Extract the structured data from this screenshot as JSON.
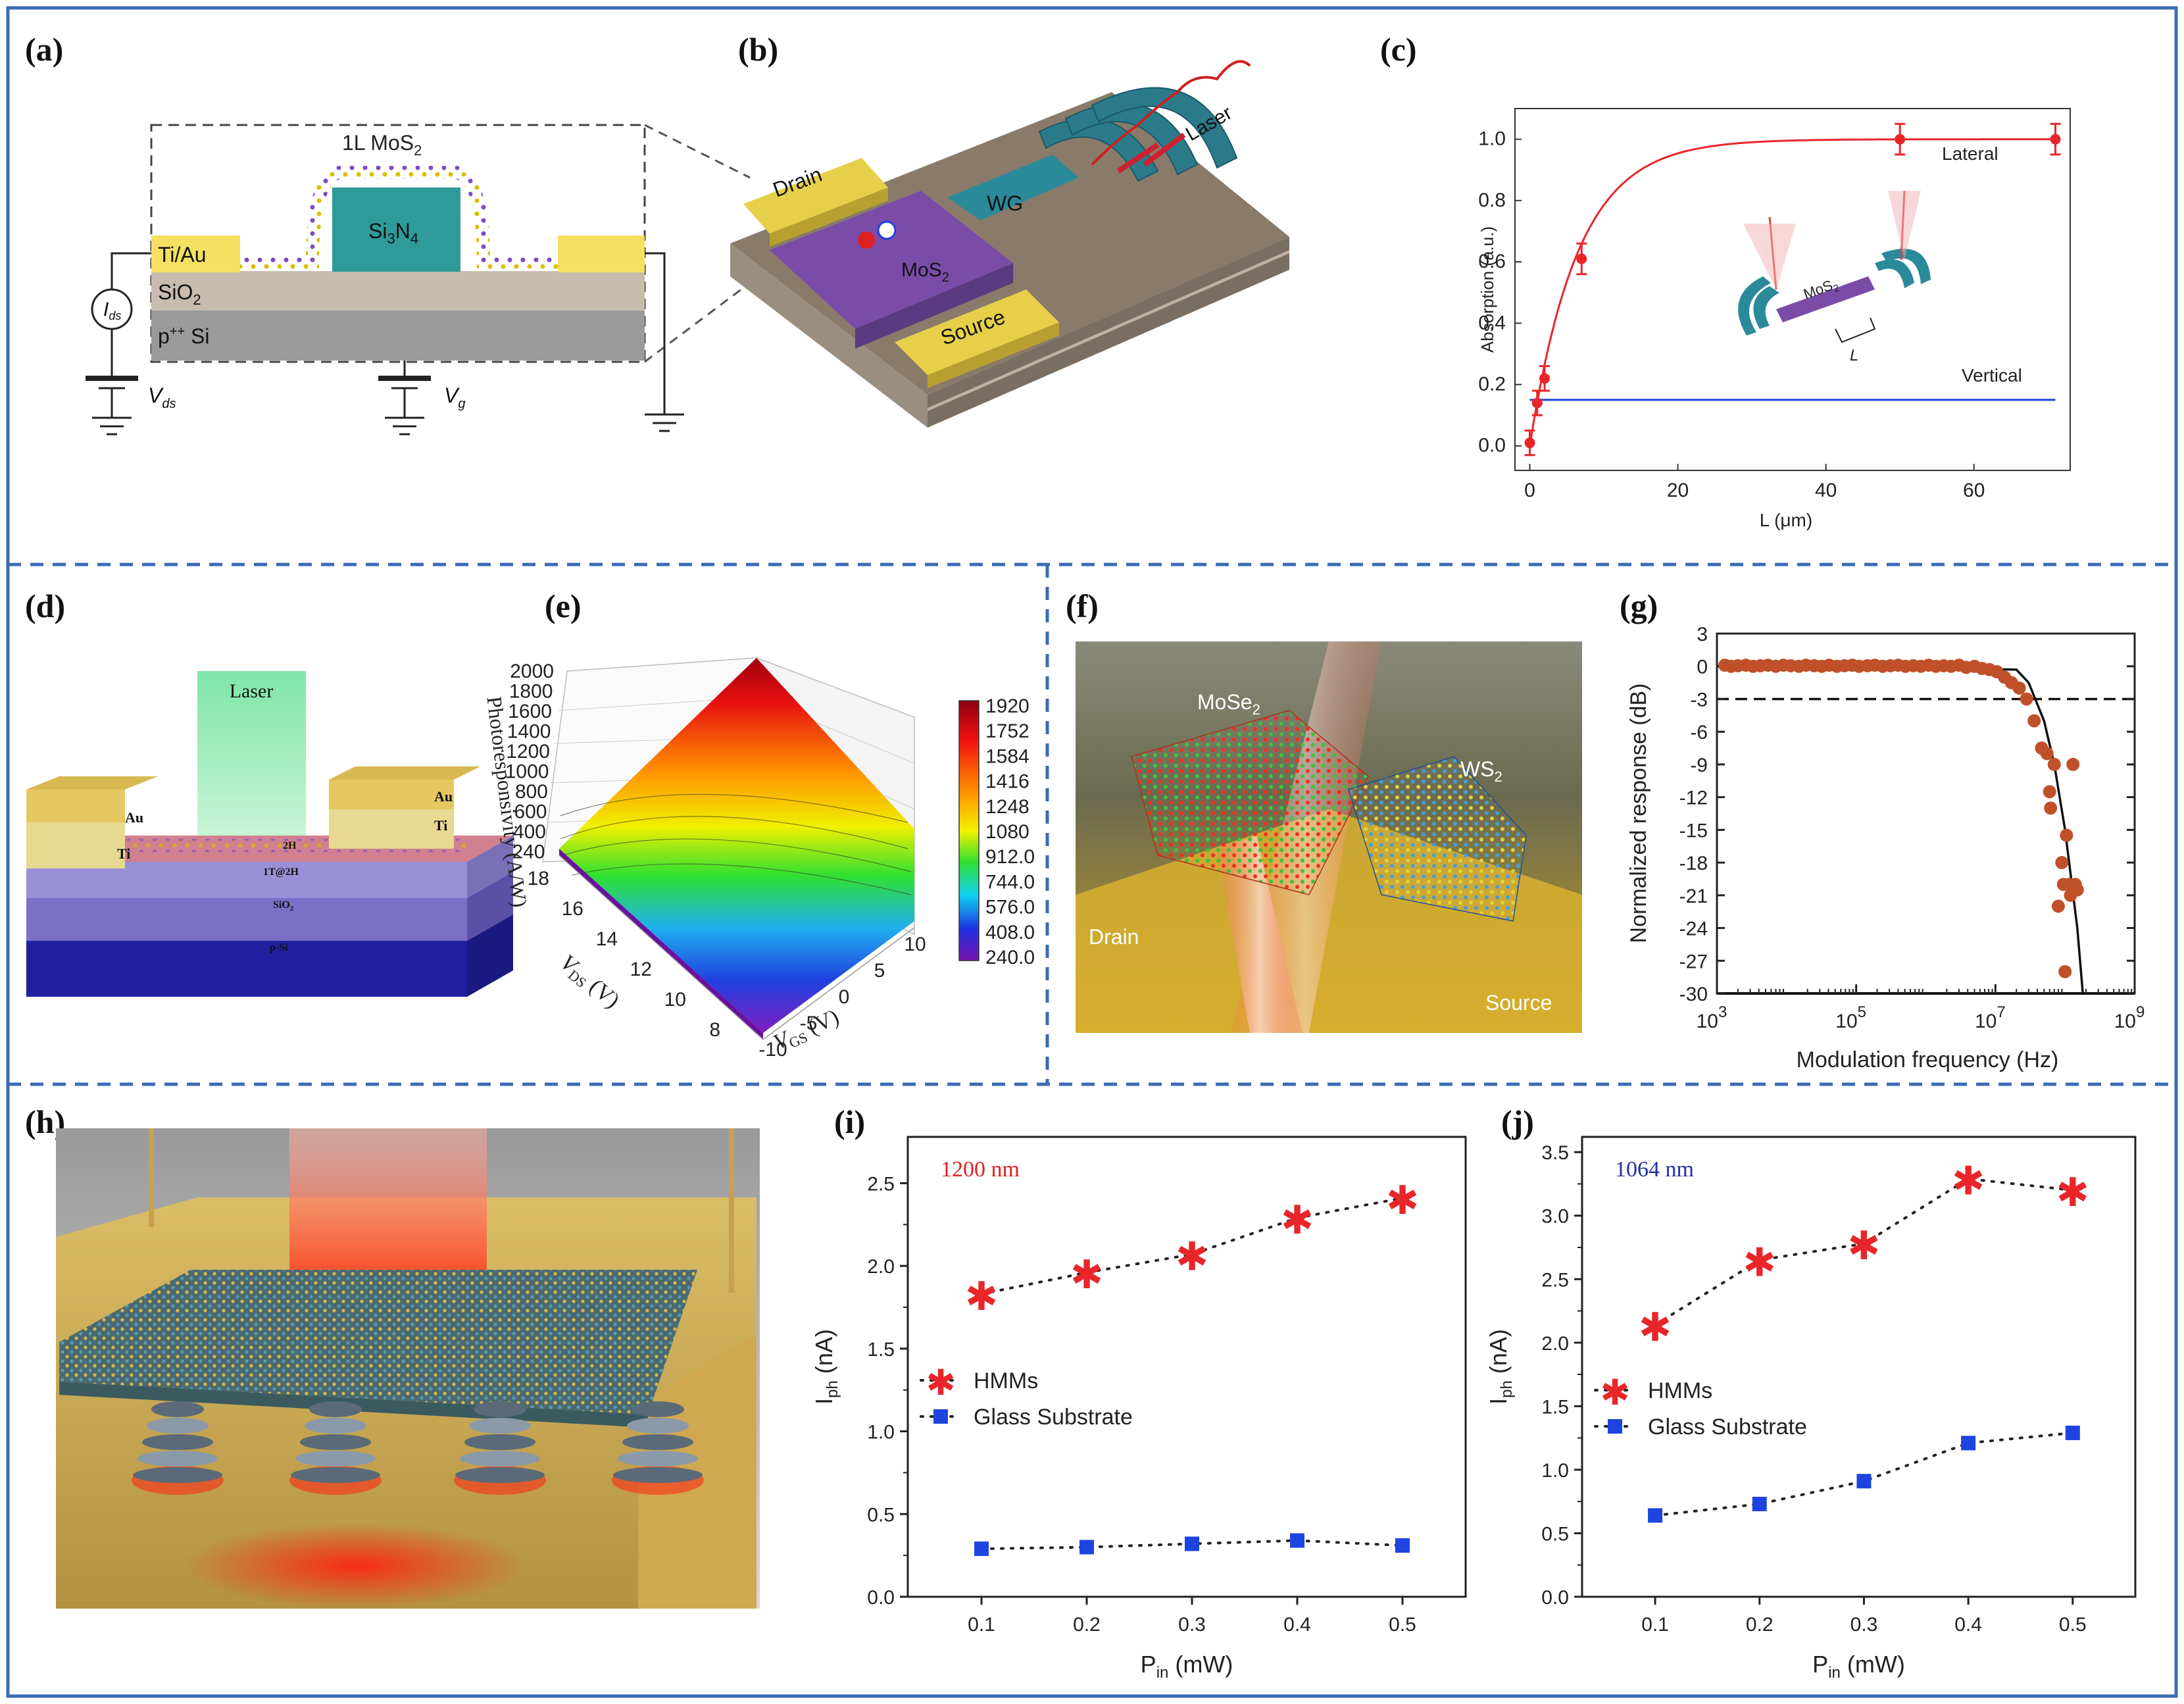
{
  "panel_labels": [
    "(a)",
    "(b)",
    "(c)",
    "(d)",
    "(e)",
    "(f)",
    "(g)",
    "(h)",
    "(i)",
    "(j)"
  ],
  "colors": {
    "frame": "#3a6bb5",
    "red": "#e8262a",
    "blue": "#1e44e0",
    "brown": "#c0502a",
    "gold": "#f6e062"
  },
  "a": {
    "mos2": "1L MoS",
    "mos2_sub": "2",
    "si3n4": "Si",
    "si3n4_s1": "3",
    "si3n4_n": "N",
    "si3n4_s2": "4",
    "tiau": "Ti/Au",
    "sio2": "SiO",
    "sio2_sub": "2",
    "psi": "p",
    "psi_sup": "++",
    "psi_si": " Si",
    "ids": "I",
    "ids_sub": "ds",
    "vds": "V",
    "vds_sub": "ds",
    "vg": "V",
    "vg_sub": "g"
  },
  "b": {
    "drain": "Drain",
    "source": "Source",
    "wg": "WG",
    "mos2": "MoS",
    "mos2_sub": "2",
    "laser": "Laser"
  },
  "c": {
    "lateral": "Lateral",
    "vertical": "Vertical",
    "inset_mos2": "MoS",
    "inset_mos2_sub": "2",
    "inset_l": "L"
  },
  "d": {
    "laser": "Laser",
    "au": "Au",
    "ti": "Ti",
    "l2h": "2H",
    "l1t2h": "1T@2H",
    "sio2": "SiO",
    "sio2_sub": "2",
    "psi": "p-Si"
  },
  "e": {
    "zlabel": "Photoresponsivity (A/W)",
    "xlabel": "V",
    "xlabel_sub": "DS",
    "xlabel_unit": " (V)",
    "ylabel": "V",
    "ylabel_sub": "GS",
    "ylabel_unit": " (V)",
    "zticks": [
      "2000",
      "1800",
      "1600",
      "1400",
      "1200",
      "1000",
      "800",
      "600",
      "400",
      "240"
    ],
    "vds_ticks": [
      "18",
      "16",
      "14",
      "12",
      "10",
      "8"
    ],
    "vgs_ticks": [
      "-10",
      "-5",
      "0",
      "5",
      "10"
    ],
    "colorbar": [
      "1920",
      "1752",
      "1584",
      "1416",
      "1248",
      "1080",
      "912.0",
      "744.0",
      "576.0",
      "408.0",
      "240.0"
    ]
  },
  "f": {
    "mose2": "MoSe",
    "mose2_sub": "2",
    "ws2": "WS",
    "ws2_sub": "2",
    "drain": "Drain",
    "source": "Source"
  },
  "chart_data": [
    {
      "id": "c",
      "type": "line",
      "xlabel": "L (μm)",
      "ylabel": "Absorption (a.u.)",
      "xlim": [
        -2,
        73
      ],
      "ylim": [
        -0.08,
        1.1
      ],
      "xticks": [
        "0",
        "20",
        "40",
        "60"
      ],
      "xtick_values": [
        0,
        20,
        40,
        60
      ],
      "yticks": [
        "0.0",
        "0.2",
        "0.4",
        "0.6",
        "0.8",
        "1.0"
      ],
      "ytick_values": [
        0,
        0.2,
        0.4,
        0.6,
        0.8,
        1.0
      ],
      "series": [
        {
          "name": "Lateral",
          "x": [
            0,
            1,
            2,
            7,
            50,
            71
          ],
          "y": [
            0.01,
            0.14,
            0.22,
            0.61,
            1.0,
            1.0
          ],
          "err": [
            0.04,
            0.04,
            0.04,
            0.05,
            0.05,
            0.05
          ]
        },
        {
          "name": "Vertical",
          "x": [
            0,
            71
          ],
          "y": [
            0.15,
            0.15
          ]
        }
      ]
    },
    {
      "id": "g",
      "type": "scatter",
      "xlabel": "Modulation frequency (Hz)",
      "ylabel": "Normalized response (dB)",
      "xscale": "log",
      "xlim": [
        1000,
        1000000000
      ],
      "ylim": [
        -30,
        3
      ],
      "xticks": [
        "10",
        "10",
        "10",
        "10"
      ],
      "xtick_exp": [
        "3",
        "5",
        "7",
        "9"
      ],
      "xtick_values": [
        1000,
        100000,
        10000000,
        1000000000
      ],
      "yticks": [
        "3",
        "0",
        "-3",
        "-6",
        "-9",
        "-12",
        "-15",
        "-18",
        "-21",
        "-24",
        "-27",
        "-30"
      ],
      "ytick_values": [
        3,
        0,
        -3,
        -6,
        -9,
        -12,
        -15,
        -18,
        -21,
        -24,
        -27,
        -30
      ],
      "reference_line_db": -3,
      "points": {
        "x": [
          1300,
          1600,
          2000,
          2600,
          3300,
          4200,
          5400,
          7000,
          9000,
          11500,
          15000,
          19000,
          25000,
          32000,
          41000,
          53000,
          68000,
          88000,
          110000,
          145000,
          185000,
          240000,
          310000,
          400000,
          510000,
          660000,
          850000,
          1100000,
          1400000,
          1800000,
          2300000,
          3000000,
          3800000,
          5000000,
          6400000,
          8200000,
          10500000,
          13500000,
          17000000,
          22000000,
          28000000,
          36000000,
          46000000,
          60000000,
          70000000,
          80000000,
          100000000,
          55000000,
          62000000,
          130000000,
          150000000,
          90000000,
          115000000,
          105000000,
          95000000,
          120000000,
          140000000
        ],
        "y": [
          0.1,
          0,
          0.05,
          0.1,
          0,
          0.05,
          0.1,
          0,
          0.1,
          0.05,
          0,
          0.1,
          0.05,
          0,
          0.1,
          0,
          0.05,
          0.1,
          0,
          0.05,
          0.1,
          0,
          0.05,
          0.1,
          0,
          0.05,
          0,
          0.1,
          0,
          0.05,
          0,
          0.1,
          -0.1,
          0,
          -0.2,
          -0.3,
          -0.5,
          -1.0,
          -1.5,
          -2.0,
          -3.0,
          -5.0,
          -7.5,
          -11.5,
          -9.0,
          -22.0,
          -28.0,
          -8.0,
          -13.0,
          -9.0,
          -20.5,
          -18.0,
          -20.0,
          -15.5,
          -20.0,
          -21.0,
          -20.0
        ]
      },
      "fit": {
        "x": [
          30000000,
          50000000,
          70000000,
          100000000,
          150000000,
          180000000
        ],
        "y": [
          -1.5,
          -5.0,
          -9.0,
          -15.0,
          -24.0,
          -30.0
        ]
      }
    },
    {
      "id": "i",
      "type": "line",
      "annotation": "1200 nm",
      "xlabel": "P",
      "xlabel_sub": "in",
      "xlabel_unit": " (mW)",
      "ylabel": "I",
      "ylabel_sub": "ph",
      "ylabel_unit": " (nA)",
      "xlim": [
        0.03,
        0.56
      ],
      "ylim": [
        0,
        2.78
      ],
      "xticks": [
        "0.1",
        "0.2",
        "0.3",
        "0.4",
        "0.5"
      ],
      "xtick_values": [
        0.1,
        0.2,
        0.3,
        0.4,
        0.5
      ],
      "yticks": [
        "0.0",
        "0.5",
        "1.0",
        "1.5",
        "2.0",
        "2.5"
      ],
      "ytick_values": [
        0,
        0.5,
        1.0,
        1.5,
        2.0,
        2.5
      ],
      "categories": [
        0.1,
        0.2,
        0.3,
        0.4,
        0.5
      ],
      "series": [
        {
          "name": "HMMs",
          "values": [
            1.83,
            1.96,
            2.07,
            2.29,
            2.41
          ]
        },
        {
          "name": "Glass Substrate",
          "values": [
            0.29,
            0.3,
            0.32,
            0.34,
            0.31
          ]
        }
      ]
    },
    {
      "id": "j",
      "type": "line",
      "annotation": "1064 nm",
      "xlabel": "P",
      "xlabel_sub": "in",
      "xlabel_unit": " (mW)",
      "ylabel": "I",
      "ylabel_sub": "ph",
      "ylabel_unit": " (nA)",
      "xlim": [
        0.03,
        0.56
      ],
      "ylim": [
        0,
        3.62
      ],
      "xticks": [
        "0.1",
        "0.2",
        "0.3",
        "0.4",
        "0.5"
      ],
      "xtick_values": [
        0.1,
        0.2,
        0.3,
        0.4,
        0.5
      ],
      "yticks": [
        "0.0",
        "0.5",
        "1.0",
        "1.5",
        "2.0",
        "2.5",
        "3.0",
        "3.5"
      ],
      "ytick_values": [
        0,
        0.5,
        1.0,
        1.5,
        2.0,
        2.5,
        3.0,
        3.5
      ],
      "categories": [
        0.1,
        0.2,
        0.3,
        0.4,
        0.5
      ],
      "series": [
        {
          "name": "HMMs",
          "values": [
            2.14,
            2.65,
            2.78,
            3.29,
            3.2
          ]
        },
        {
          "name": "Glass Substrate",
          "values": [
            0.64,
            0.73,
            0.91,
            1.21,
            1.29
          ]
        }
      ]
    }
  ]
}
